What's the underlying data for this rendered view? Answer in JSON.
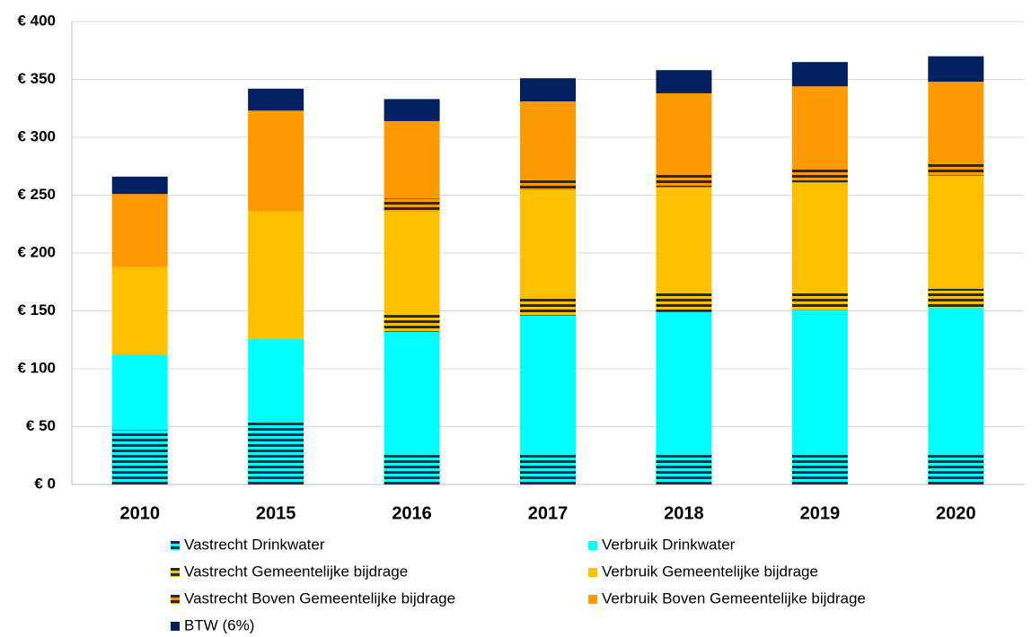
{
  "chart_data": {
    "type": "stacked_bar",
    "categories": [
      "2010",
      "2015",
      "2016",
      "2017",
      "2018",
      "2019",
      "2020"
    ],
    "series": [
      {
        "name": "Vastrecht Drinkwater",
        "color": "#00ffff",
        "hatch": true,
        "values": [
          47,
          54,
          26,
          26,
          26,
          26,
          26
        ]
      },
      {
        "name": "Verbruik Drinkwater",
        "color": "#00ffff",
        "hatch": false,
        "values": [
          65,
          72,
          106,
          120,
          123,
          125,
          127
        ]
      },
      {
        "name": "Vastrecht Gemeentelijke bijdrage",
        "color": "#ffc000",
        "hatch": true,
        "values": [
          0,
          0,
          16,
          16,
          17,
          15,
          16
        ]
      },
      {
        "name": "Verbruik Gemeentelijke bijdrage",
        "color": "#ffc000",
        "hatch": false,
        "values": [
          76,
          110,
          88,
          92,
          91,
          95,
          98
        ]
      },
      {
        "name": "Vastrecht Boven Gemeentelijke bijdrage",
        "color": "#ff9900",
        "hatch": true,
        "values": [
          0,
          0,
          11,
          9,
          12,
          13,
          11
        ]
      },
      {
        "name": "Verbruik Boven Gemeentelijke bijdrage",
        "color": "#ff9900",
        "hatch": false,
        "values": [
          63,
          87,
          67,
          68,
          69,
          70,
          70
        ]
      },
      {
        "name": "BTW (6%)",
        "color": "#002060",
        "hatch": false,
        "values": [
          15,
          19,
          19,
          20,
          20,
          21,
          22
        ]
      }
    ],
    "ylim": [
      0,
      400
    ],
    "yticks": [
      {
        "value": 0,
        "label": "€ 0"
      },
      {
        "value": 50,
        "label": "€ 50"
      },
      {
        "value": 100,
        "label": "€ 100"
      },
      {
        "value": 150,
        "label": "€ 150"
      },
      {
        "value": 200,
        "label": "€ 200"
      },
      {
        "value": 250,
        "label": "€ 250"
      },
      {
        "value": 300,
        "label": "€ 300"
      },
      {
        "value": 350,
        "label": "€ 350"
      },
      {
        "value": 400,
        "label": "€ 400"
      }
    ],
    "grid": true,
    "legend": "bottom"
  }
}
